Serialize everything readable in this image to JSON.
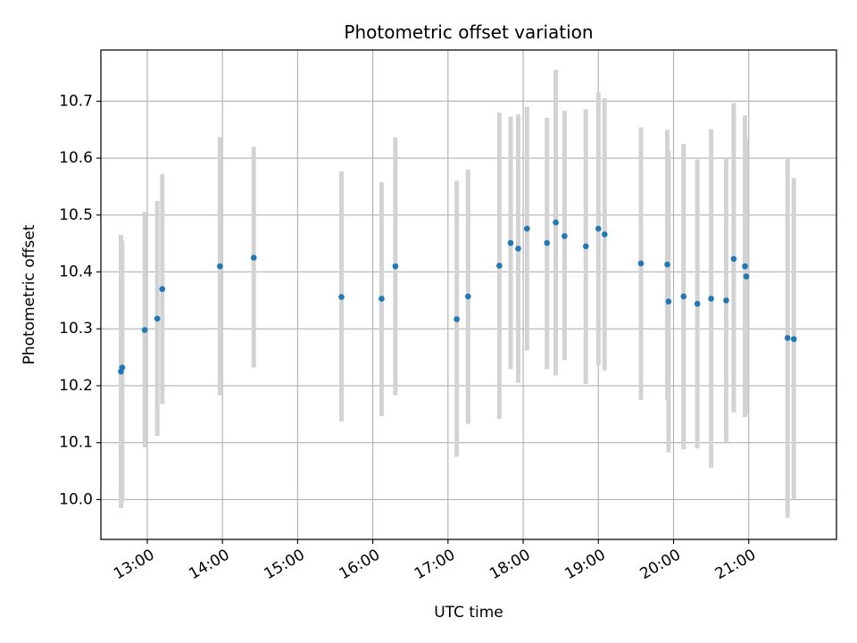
{
  "chart_data": {
    "type": "scatter",
    "title": "Photometric offset variation",
    "xlabel": "UTC time",
    "ylabel": "Photometric offset",
    "grid": true,
    "xlim": [
      "12:23",
      "22:10"
    ],
    "ylim": [
      9.93,
      10.79
    ],
    "x_ticks": [
      "13:00",
      "14:00",
      "15:00",
      "16:00",
      "17:00",
      "18:00",
      "19:00",
      "20:00",
      "21:00"
    ],
    "y_ticks": [
      "10.0",
      "10.1",
      "10.2",
      "10.3",
      "10.4",
      "10.5",
      "10.6",
      "10.7"
    ],
    "colors": {
      "point": "#1f77b4",
      "errorbar": "#d3d3d3",
      "grid": "#b0b0b0",
      "axes": "#000000"
    },
    "series": [
      {
        "points": [
          {
            "x": "12:39",
            "y": 10.225,
            "ylow": 9.985,
            "yhigh": 10.465
          },
          {
            "x": "12:40",
            "y": 10.232,
            "ylow": 9.995,
            "yhigh": 10.455
          },
          {
            "x": "12:58",
            "y": 10.298,
            "ylow": 10.092,
            "yhigh": 10.505
          },
          {
            "x": "13:08",
            "y": 10.318,
            "ylow": 10.112,
            "yhigh": 10.525
          },
          {
            "x": "13:12",
            "y": 10.37,
            "ylow": 10.168,
            "yhigh": 10.572
          },
          {
            "x": "13:58",
            "y": 10.41,
            "ylow": 10.183,
            "yhigh": 10.637
          },
          {
            "x": "14:25",
            "y": 10.425,
            "ylow": 10.232,
            "yhigh": 10.62
          },
          {
            "x": "15:35",
            "y": 10.356,
            "ylow": 10.137,
            "yhigh": 10.577
          },
          {
            "x": "16:07",
            "y": 10.353,
            "ylow": 10.147,
            "yhigh": 10.558
          },
          {
            "x": "16:18",
            "y": 10.41,
            "ylow": 10.183,
            "yhigh": 10.637
          },
          {
            "x": "17:07",
            "y": 10.317,
            "ylow": 10.075,
            "yhigh": 10.56
          },
          {
            "x": "17:16",
            "y": 10.357,
            "ylow": 10.133,
            "yhigh": 10.58
          },
          {
            "x": "17:41",
            "y": 10.411,
            "ylow": 10.142,
            "yhigh": 10.68
          },
          {
            "x": "17:50",
            "y": 10.451,
            "ylow": 10.229,
            "yhigh": 10.673
          },
          {
            "x": "17:56",
            "y": 10.441,
            "ylow": 10.205,
            "yhigh": 10.677
          },
          {
            "x": "18:03",
            "y": 10.476,
            "ylow": 10.262,
            "yhigh": 10.69
          },
          {
            "x": "18:19",
            "y": 10.451,
            "ylow": 10.229,
            "yhigh": 10.671
          },
          {
            "x": "18:26",
            "y": 10.487,
            "ylow": 10.218,
            "yhigh": 10.755
          },
          {
            "x": "18:33",
            "y": 10.463,
            "ylow": 10.245,
            "yhigh": 10.683
          },
          {
            "x": "18:50",
            "y": 10.445,
            "ylow": 10.203,
            "yhigh": 10.686
          },
          {
            "x": "19:00",
            "y": 10.476,
            "ylow": 10.235,
            "yhigh": 10.716
          },
          {
            "x": "19:05",
            "y": 10.466,
            "ylow": 10.227,
            "yhigh": 10.705
          },
          {
            "x": "19:34",
            "y": 10.415,
            "ylow": 10.175,
            "yhigh": 10.654
          },
          {
            "x": "19:55",
            "y": 10.413,
            "ylow": 10.175,
            "yhigh": 10.65
          },
          {
            "x": "19:56",
            "y": 10.348,
            "ylow": 10.083,
            "yhigh": 10.613
          },
          {
            "x": "20:08",
            "y": 10.357,
            "ylow": 10.088,
            "yhigh": 10.625
          },
          {
            "x": "20:19",
            "y": 10.344,
            "ylow": 10.09,
            "yhigh": 10.598
          },
          {
            "x": "20:30",
            "y": 10.353,
            "ylow": 10.056,
            "yhigh": 10.651
          },
          {
            "x": "20:42",
            "y": 10.35,
            "ylow": 10.1,
            "yhigh": 10.6
          },
          {
            "x": "20:48",
            "y": 10.423,
            "ylow": 10.153,
            "yhigh": 10.697
          },
          {
            "x": "20:57",
            "y": 10.41,
            "ylow": 10.145,
            "yhigh": 10.675
          },
          {
            "x": "20:58",
            "y": 10.392,
            "ylow": 10.15,
            "yhigh": 10.634
          },
          {
            "x": "21:31",
            "y": 10.284,
            "ylow": 9.968,
            "yhigh": 10.6
          },
          {
            "x": "21:36",
            "y": 10.282,
            "ylow": 10.0,
            "yhigh": 10.565
          }
        ]
      }
    ]
  }
}
